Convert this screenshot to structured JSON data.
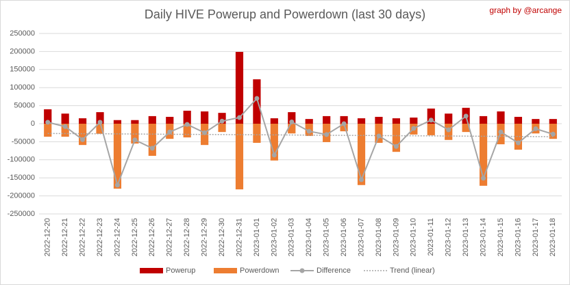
{
  "chart_data": {
    "type": "bar",
    "title": "Daily HIVE Powerup and Powerdown (last 30 days)",
    "annotation": "graph by @arcange",
    "categories": [
      "2022-12-20",
      "2022-12-21",
      "2022-12-22",
      "2022-12-23",
      "2022-12-24",
      "2022-12-25",
      "2022-12-26",
      "2022-12-27",
      "2022-12-28",
      "2022-12-29",
      "2022-12-30",
      "2022-12-31",
      "2023-01-01",
      "2023-01-02",
      "2023-01-03",
      "2023-01-04",
      "2023-01-05",
      "2023-01-06",
      "2023-01-07",
      "2023-01-08",
      "2023-01-09",
      "2023-01-10",
      "2023-01-11",
      "2023-01-12",
      "2023-01-13",
      "2023-01-14",
      "2023-01-15",
      "2023-01-16",
      "2023-01-17",
      "2023-01-18"
    ],
    "series": [
      {
        "name": "Powerup",
        "kind": "bar",
        "color": "#c00000",
        "values": [
          40000,
          28000,
          15000,
          32000,
          10000,
          10000,
          21000,
          19000,
          36000,
          34000,
          30000,
          199000,
          123000,
          15000,
          32000,
          13000,
          21000,
          21000,
          15000,
          19000,
          15000,
          17000,
          42000,
          28000,
          44000,
          21000,
          34000,
          19000,
          13000,
          13000
        ]
      },
      {
        "name": "Powerdown",
        "kind": "bar",
        "color": "#ed7d31",
        "values": [
          -36000,
          -36000,
          -59000,
          -28000,
          -180000,
          -55000,
          -89000,
          -42000,
          -38000,
          -59000,
          -23000,
          -182000,
          -53000,
          -102000,
          -27000,
          -34000,
          -51000,
          -21000,
          -170000,
          -53000,
          -78000,
          -30000,
          -32000,
          -45000,
          -23000,
          -172000,
          -57000,
          -72000,
          -27000,
          -42000
        ]
      },
      {
        "name": "Difference",
        "kind": "line",
        "color": "#a5a5a5",
        "values": [
          4000,
          -8000,
          -44000,
          4000,
          -170000,
          -45000,
          -68000,
          -23000,
          -2000,
          -25000,
          7000,
          17000,
          70000,
          -87000,
          5000,
          -21000,
          -30000,
          0,
          -155000,
          -34000,
          -63000,
          -13000,
          10000,
          -17000,
          21000,
          -151000,
          -23000,
          -53000,
          -14000,
          -29000
        ]
      },
      {
        "name": "Trend (linear)",
        "kind": "trend",
        "color": "#a5a5a5",
        "values": [
          -27000,
          -27300,
          -27600,
          -27900,
          -28200,
          -28600,
          -28900,
          -29200,
          -29500,
          -29800,
          -30100,
          -30400,
          -30700,
          -31000,
          -31300,
          -31700,
          -32000,
          -32300,
          -32600,
          -32900,
          -33200,
          -33500,
          -33800,
          -34100,
          -34400,
          -34800,
          -35100,
          -35400,
          -35700,
          -36000
        ]
      }
    ],
    "ylim": [
      -250000,
      250000
    ],
    "yticks": [
      -250000,
      -200000,
      -150000,
      -100000,
      -50000,
      0,
      50000,
      100000,
      150000,
      200000,
      250000
    ],
    "grid": true,
    "legend": "bottom"
  }
}
